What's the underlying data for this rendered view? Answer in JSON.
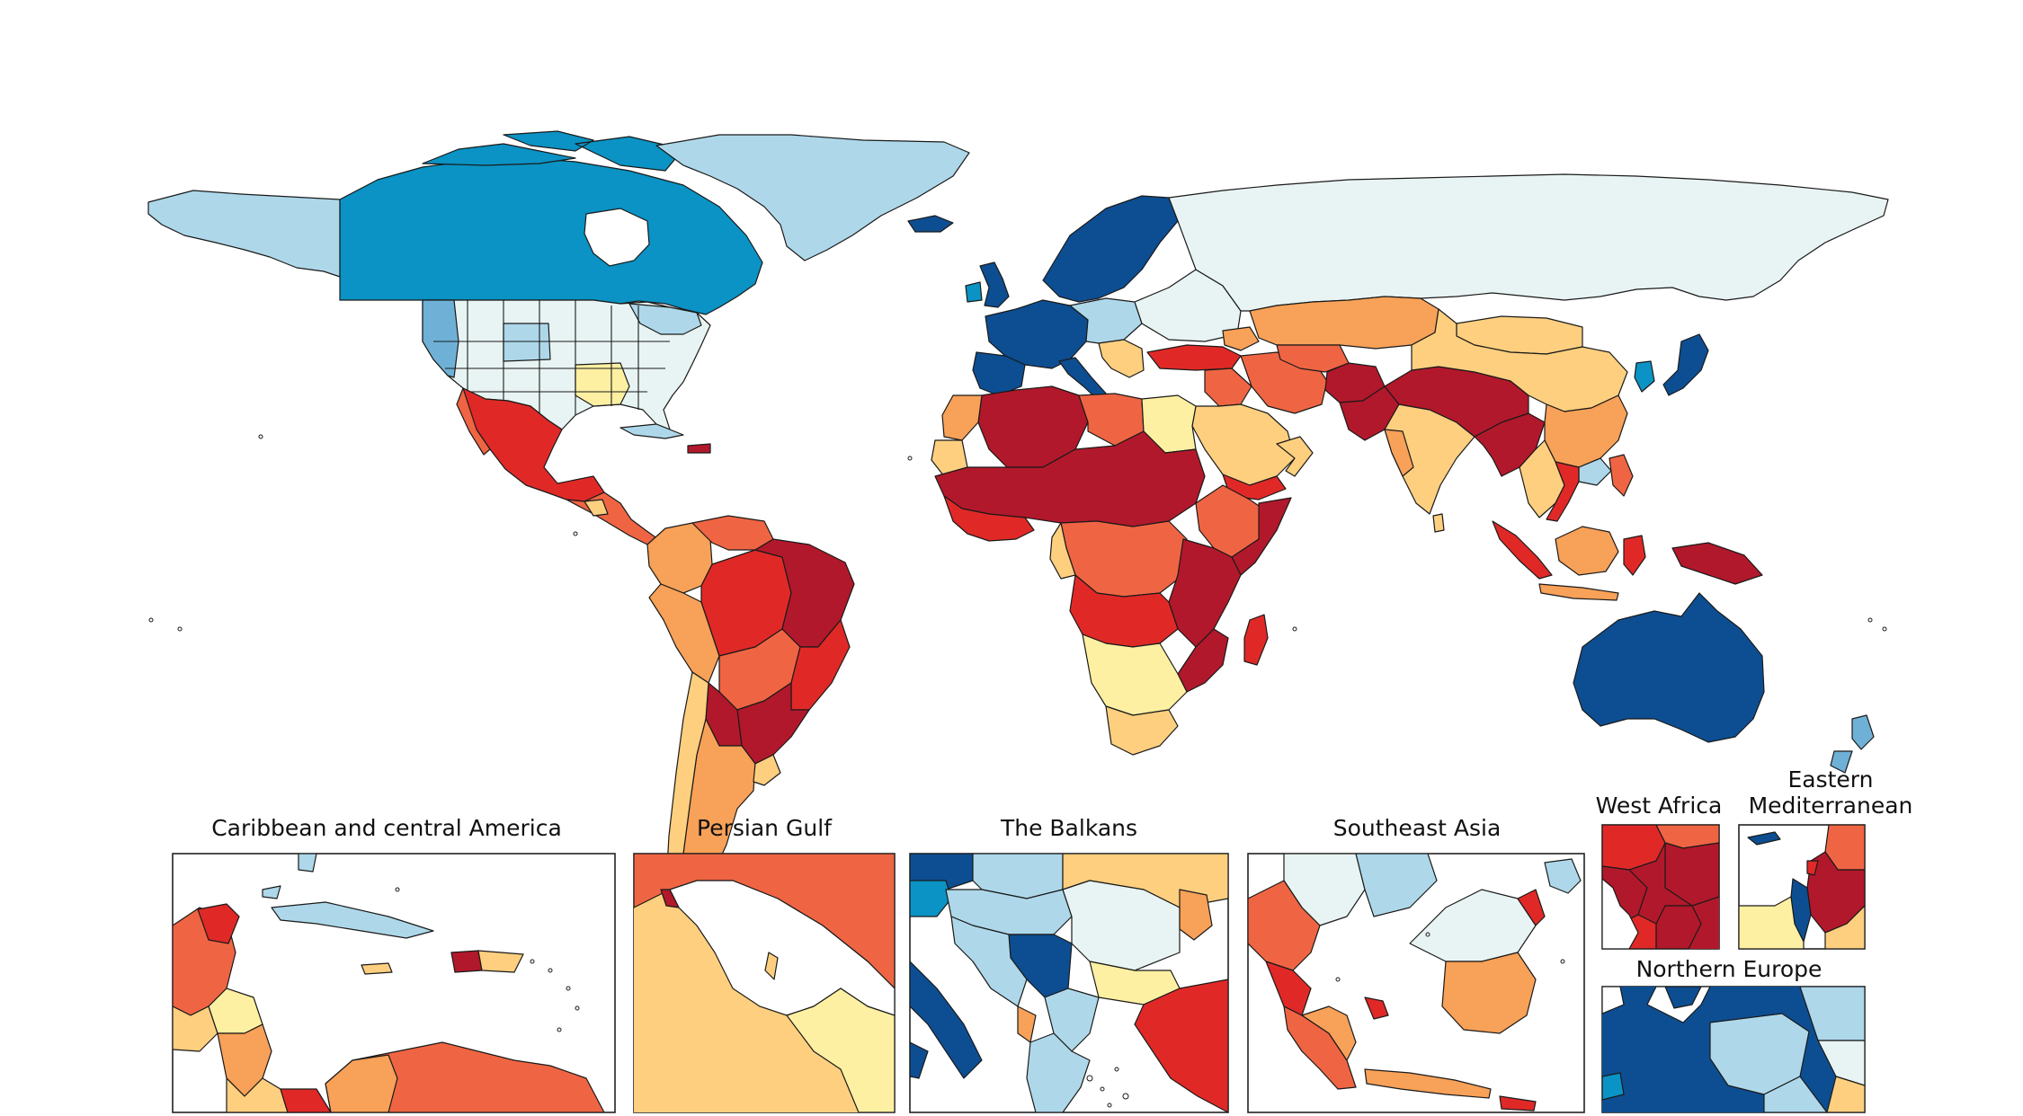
{
  "colors": {
    "dark_red": "#b2182b",
    "red": "#e02927",
    "orange_red": "#ef6543",
    "orange": "#f8a158",
    "light_orange": "#fdcf7f",
    "yellow": "#fef0a2",
    "pale": "#e8f4f3",
    "light_blue": "#aed8ea",
    "mid_blue": "#6fb1d6",
    "blue": "#0a93c4",
    "dark_blue": "#0d4e92",
    "water": "#ffffff",
    "border": "#1a1a1a"
  },
  "insets": [
    {
      "id": "caribbean",
      "title": "Caribbean and central America"
    },
    {
      "id": "persian-gulf",
      "title": "Persian Gulf"
    },
    {
      "id": "balkans",
      "title": "The Balkans"
    },
    {
      "id": "southeast-asia",
      "title": "Southeast Asia"
    },
    {
      "id": "west-africa",
      "title": "West Africa"
    },
    {
      "id": "eastern-med",
      "title_line1": "Eastern",
      "title_line2": "Mediterranean"
    },
    {
      "id": "northern-europe",
      "title": "Northern Europe"
    }
  ]
}
